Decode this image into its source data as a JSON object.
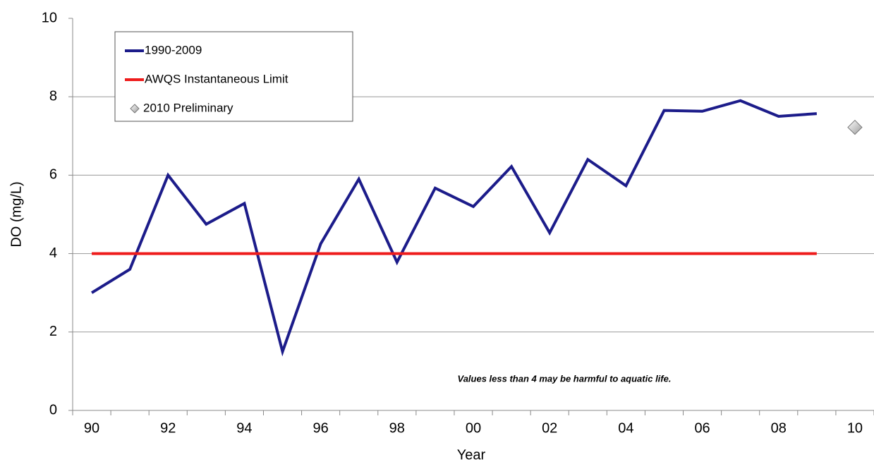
{
  "chart_data": {
    "type": "line",
    "ylabel": "DO (mg/L)",
    "xlabel": "Year",
    "annotation": "Values less than 4 may be harmful to aquatic life.",
    "categories": [
      "90",
      null,
      "92",
      null,
      "94",
      null,
      "96",
      null,
      "98",
      null,
      "00",
      null,
      "02",
      null,
      "04",
      null,
      "06",
      null,
      "08",
      null,
      "10"
    ],
    "series": [
      {
        "name": "1990-2009",
        "color": "#1c1c8a",
        "values": [
          3.0,
          3.6,
          6.0,
          4.75,
          5.28,
          1.5,
          4.25,
          5.9,
          3.78,
          5.67,
          5.2,
          6.22,
          4.53,
          6.4,
          5.73,
          7.65,
          7.63,
          7.9,
          7.5,
          7.57,
          null
        ]
      },
      {
        "name": "AWQS Instantaneous Limit",
        "color": "#ee1c1c",
        "values": [
          4,
          4,
          4,
          4,
          4,
          4,
          4,
          4,
          4,
          4,
          4,
          4,
          4,
          4,
          4,
          4,
          4,
          4,
          4,
          4,
          null
        ]
      },
      {
        "name": "2010 Preliminary",
        "color": "#c8c8c8",
        "marker": "diamond",
        "line": false,
        "values": [
          null,
          null,
          null,
          null,
          null,
          null,
          null,
          null,
          null,
          null,
          null,
          null,
          null,
          null,
          null,
          null,
          null,
          null,
          null,
          null,
          7.22
        ]
      }
    ],
    "ylim": [
      0,
      10
    ],
    "yticks": [
      0,
      2,
      4,
      6,
      8,
      10
    ],
    "grid": true,
    "legend": "top-left"
  }
}
